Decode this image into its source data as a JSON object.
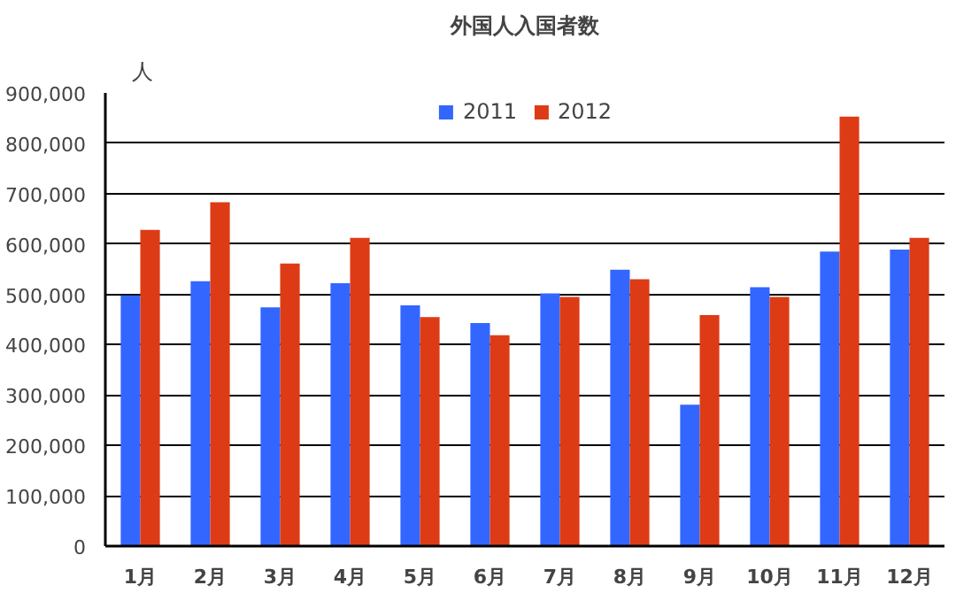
{
  "chart_data": {
    "type": "bar",
    "title": "外国人入国者数",
    "ylabel": "人",
    "categories": [
      "1月",
      "2月",
      "3月",
      "4月",
      "5月",
      "6月",
      "7月",
      "8月",
      "9月",
      "10月",
      "11月",
      "12月"
    ],
    "series": [
      {
        "name": "2011",
        "color": "#3366ff",
        "values": [
          498000,
          526000,
          474000,
          522000,
          478000,
          443000,
          502000,
          549000,
          281000,
          514000,
          585000,
          589000
        ]
      },
      {
        "name": "2012",
        "color": "#dd3b16",
        "values": [
          628000,
          683000,
          561000,
          612000,
          455000,
          419000,
          495000,
          530000,
          459000,
          495000,
          853000,
          612000
        ]
      }
    ],
    "ylim": [
      0,
      900000
    ],
    "yticks": [
      0,
      {
        "value": 100000,
        "label": "100,000"
      },
      {
        "value": 200000,
        "label": "200,000"
      },
      {
        "value": 300000,
        "label": "300,000"
      },
      {
        "value": 400000,
        "label": "400,000"
      },
      {
        "value": 500000,
        "label": "500,000"
      },
      {
        "value": 600000,
        "label": "600,000"
      },
      {
        "value": 700000,
        "label": "700,000"
      },
      {
        "value": 800000,
        "label": "800,000"
      },
      {
        "value": 900000,
        "label": "900,000"
      }
    ],
    "grid": "y",
    "legend": "top"
  }
}
